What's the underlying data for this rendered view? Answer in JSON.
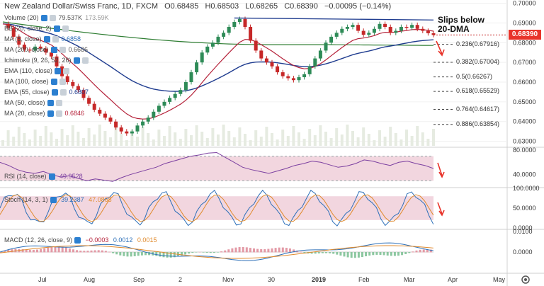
{
  "header": {
    "symbol": "New Zealand Dollar/Swiss Franc, 1D, FXCM",
    "open": "O0.68485",
    "high": "H0.68503",
    "low": "L0.68265",
    "close": "C0.68390",
    "change": "−0.00095 (−0.14%)"
  },
  "indicators": [
    {
      "label": "Volume (20)",
      "value": "79.537K",
      "value2": "173.59K",
      "color": "#555"
    },
    {
      "label": "BB (20, close, 2)",
      "value": "",
      "color": "#555"
    },
    {
      "label": "MA (5, close)",
      "value": "0.6858",
      "color": "#2c6fb8"
    },
    {
      "label": "MA (200, close)",
      "value": "0.6686",
      "color": "#555"
    },
    {
      "label": "Ichimoku (9, 26, 52, 26)",
      "value": "",
      "color": "#555"
    },
    {
      "label": "EMA (110, close)",
      "value": "",
      "color": "#555"
    },
    {
      "label": "MA (100, close)",
      "value": "",
      "color": "#555"
    },
    {
      "label": "EMA (55, close)",
      "value": "0.6807",
      "color": "#1f3c8f"
    },
    {
      "label": "MA (50, close)",
      "value": "",
      "color": "#555"
    },
    {
      "label": "MA (20, close)",
      "value": "0.6846",
      "color": "#b5223a"
    }
  ],
  "annotation": "Slips below 20-DMA",
  "annotation_line1": "Slips below",
  "annotation_line2": "20-DMA",
  "last_price": "0.68390",
  "fib_levels": [
    {
      "label": "0.236(0.67916)",
      "price": 0.67916
    },
    {
      "label": "0.382(0.67004)",
      "price": 0.67004
    },
    {
      "label": "0.5(0.66267)",
      "price": 0.66267
    },
    {
      "label": "0.618(0.65529)",
      "price": 0.65529
    },
    {
      "label": "0.764(0.64617)",
      "price": 0.64617
    },
    {
      "label": "0.886(0.63854)",
      "price": 0.63854
    }
  ],
  "rsi_label": "RSI (14, close)",
  "rsi_value": "49.9528",
  "stoch_label": "Stoch (14, 3, 1)",
  "stoch_k": "39.2387",
  "stoch_d": "47.0868",
  "macd_label": "MACD (12, 26, close, 9)",
  "macd_hist": "−0.0003",
  "macd_line": "0.0012",
  "macd_signal": "0.0015",
  "colors": {
    "up": "#2e8b57",
    "down": "#c62828",
    "ma20": "#b5223a",
    "ema55": "#1f3c8f",
    "ma200": "#2e7d32",
    "rsi": "#7b3fa0",
    "band": "#f2d6df",
    "stochK": "#2c6fb8",
    "stochD": "#e08a2c",
    "macd": "#2c6fb8",
    "signal": "#e08a2c",
    "arrow": "#e8332a"
  },
  "chart_data": {
    "type": "candlestick",
    "x_ticks": [
      "Jul",
      "Aug",
      "Sep",
      "2",
      "Nov",
      "30",
      "2019",
      "Feb",
      "Mar",
      "Apr",
      "May"
    ],
    "price_axis": {
      "ticks": [
        "0.70000",
        "0.69000",
        "0.68000",
        "0.67000",
        "0.66000",
        "0.65000",
        "0.64000",
        "0.63000"
      ],
      "ylim": [
        0.6277,
        0.7002
      ]
    },
    "close_series": [
      0.6895,
      0.6875,
      0.683,
      0.679,
      0.6765,
      0.676,
      0.678,
      0.677,
      0.675,
      0.673,
      0.668,
      0.663,
      0.66,
      0.658,
      0.656,
      0.652,
      0.649,
      0.646,
      0.644,
      0.642,
      0.64,
      0.637,
      0.635,
      0.634,
      0.635,
      0.638,
      0.64,
      0.642,
      0.645,
      0.648,
      0.65,
      0.652,
      0.654,
      0.656,
      0.66,
      0.665,
      0.67,
      0.675,
      0.678,
      0.68,
      0.683,
      0.685,
      0.688,
      0.6905,
      0.692,
      0.688,
      0.681,
      0.676,
      0.672,
      0.67,
      0.668,
      0.665,
      0.663,
      0.662,
      0.661,
      0.6625,
      0.664,
      0.668,
      0.672,
      0.676,
      0.68,
      0.683,
      0.685,
      0.687,
      0.688,
      0.689,
      0.686,
      0.684,
      0.685,
      0.687,
      0.6895,
      0.688,
      0.685,
      0.686,
      0.688,
      0.6875,
      0.689,
      0.687,
      0.686,
      0.6848,
      0.6839
    ],
    "rsi": {
      "ylim": [
        20,
        80
      ],
      "ticks": [
        "80.0000",
        "40.0000"
      ],
      "values": [
        60,
        55,
        48,
        44,
        42,
        45,
        40,
        36,
        38,
        34,
        30,
        33,
        31,
        29,
        35,
        40,
        44,
        48,
        52,
        58,
        62,
        66,
        70,
        72,
        75,
        76,
        68,
        60,
        52,
        48,
        45,
        42,
        46,
        50,
        55,
        58,
        62,
        60,
        56,
        52,
        54,
        58,
        64,
        62,
        58,
        55,
        60,
        62,
        58,
        55,
        50
      ]
    },
    "stoch": {
      "ylim": [
        0,
        100
      ],
      "ticks": [
        "100.0000",
        "50.0000",
        "0.0000"
      ]
    },
    "macd": {
      "ticks": [
        "0.0100",
        "0.0000"
      ]
    }
  }
}
